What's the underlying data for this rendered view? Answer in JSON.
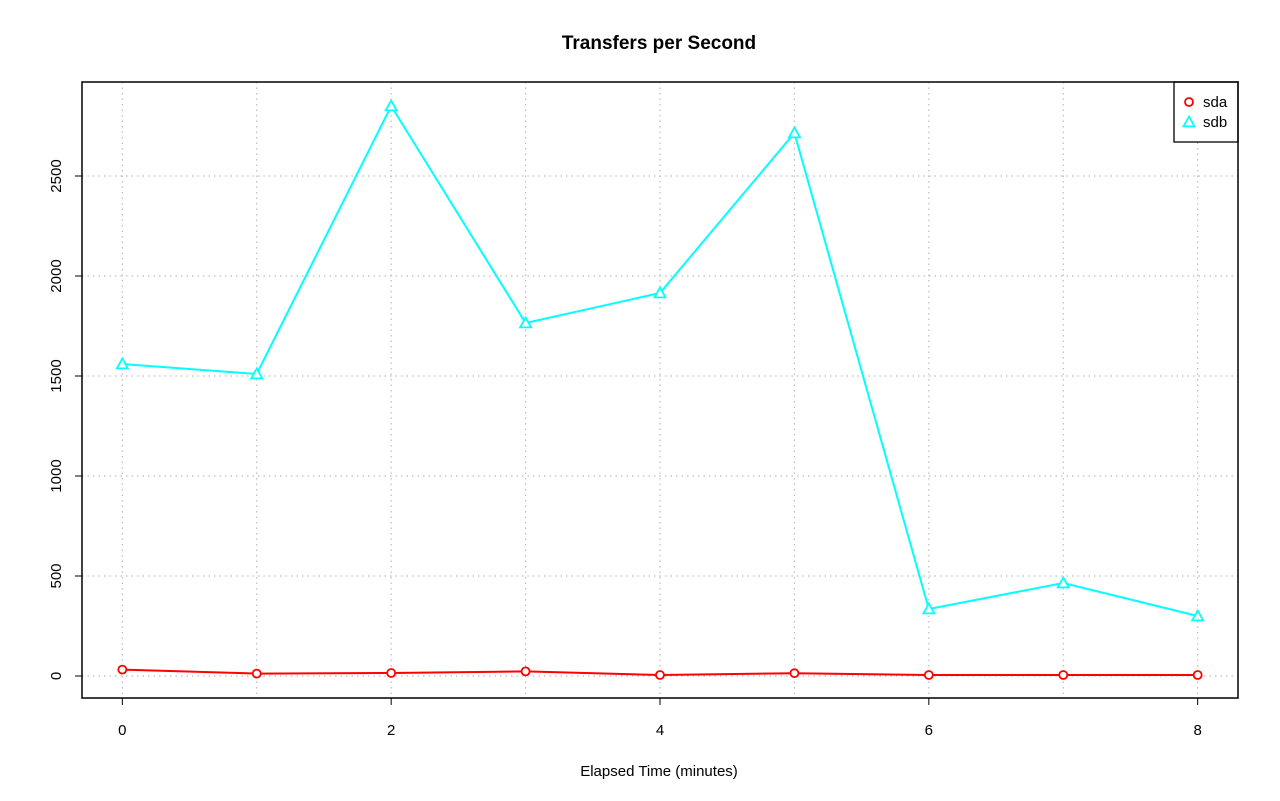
{
  "chart_data": {
    "type": "line",
    "title": "Transfers per Second",
    "xlabel": "Elapsed Time (minutes)",
    "ylabel": "",
    "x": [
      0,
      1,
      2,
      3,
      4,
      5,
      6,
      7,
      8
    ],
    "xlim": [
      -0.3,
      8.3
    ],
    "ylim": [
      -110,
      2970
    ],
    "xticks": [
      0,
      2,
      4,
      6,
      8
    ],
    "yticks": [
      0,
      500,
      1000,
      1500,
      2000,
      2500
    ],
    "grid": true,
    "legend_position": "top-right",
    "series": [
      {
        "name": "sda",
        "color": "#ff0000",
        "marker": "circle",
        "values": [
          32,
          12,
          15,
          23,
          5,
          14,
          5,
          5,
          5
        ]
      },
      {
        "name": "sdb",
        "color": "#00ffff",
        "marker": "triangle",
        "values": [
          1560,
          1510,
          2850,
          1765,
          1915,
          2715,
          335,
          465,
          300
        ]
      }
    ]
  }
}
